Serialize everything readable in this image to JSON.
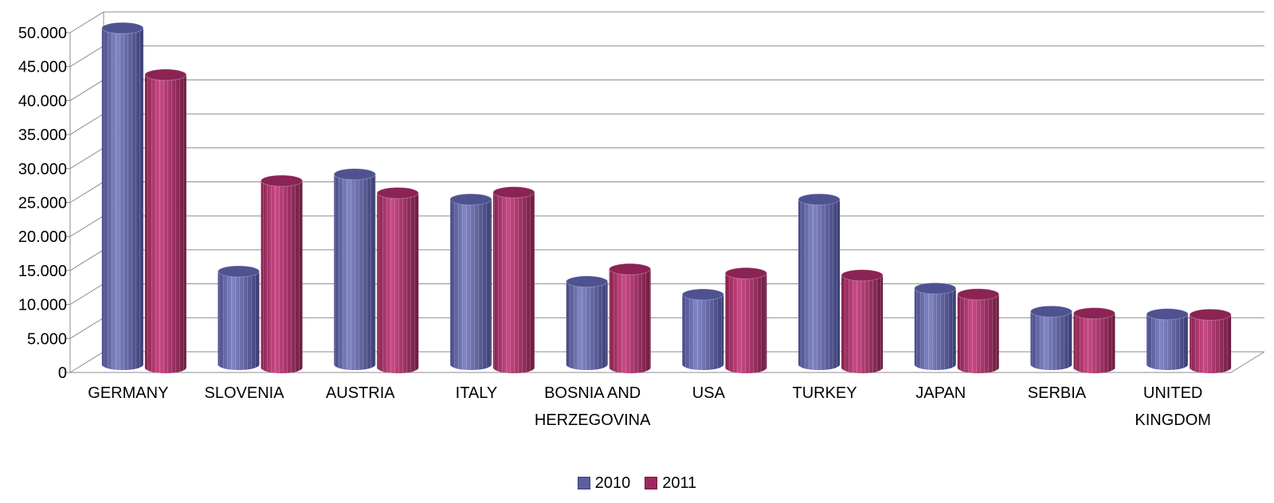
{
  "chart_data": {
    "type": "bar",
    "style": "3d-cylinder",
    "categories": [
      [
        "GERMANY"
      ],
      [
        "SLOVENIA"
      ],
      [
        "AUSTRIA"
      ],
      [
        "ITALY"
      ],
      [
        "BOSNIA AND",
        "HERZEGOVINA"
      ],
      [
        "USA"
      ],
      [
        "TURKEY"
      ],
      [
        "JAPAN"
      ],
      [
        "SERBIA"
      ],
      [
        "UNITED",
        "KINGDOM"
      ]
    ],
    "series": [
      {
        "name": "2010",
        "color": "#5b5fa0",
        "values": [
          49500,
          13700,
          28000,
          24300,
          12200,
          10300,
          24300,
          11200,
          7800,
          7400
        ]
      },
      {
        "name": "2011",
        "color": "#a0275f",
        "values": [
          43100,
          27500,
          25700,
          25800,
          14500,
          13900,
          13600,
          10800,
          8000,
          7800
        ]
      }
    ],
    "yticks": [
      "0",
      "5.000",
      "10.000",
      "15.000",
      "20.000",
      "25.000",
      "30.000",
      "35.000",
      "40.000",
      "45.000",
      "50.000"
    ],
    "ylim": [
      0,
      50000
    ],
    "grid": true,
    "legend_position": "bottom"
  }
}
